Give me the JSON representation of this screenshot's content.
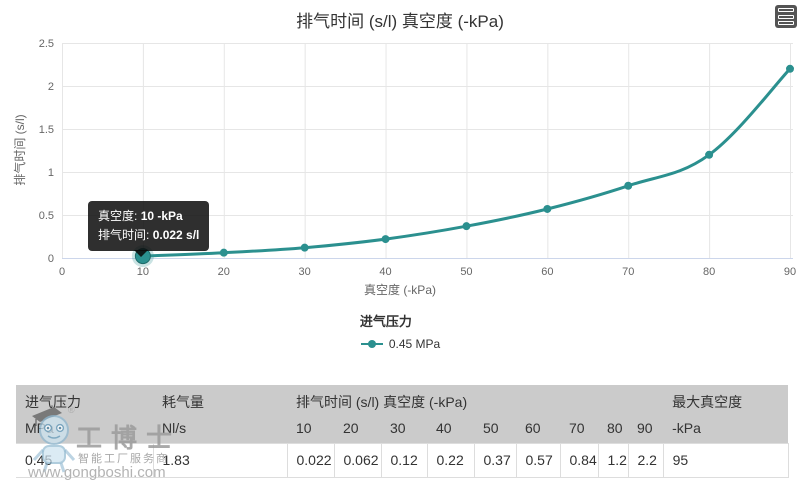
{
  "chart": {
    "title": "排气时间 (s/l) 真空度 (-kPa)",
    "icons": {
      "export_menu": "hamburger-icon"
    },
    "x_axis": {
      "title": "真空度 (-kPa)",
      "ticks": [
        "0",
        "10",
        "20",
        "30",
        "40",
        "50",
        "60",
        "70",
        "80",
        "90"
      ]
    },
    "y_axis": {
      "title": "排气时间 (s/l)",
      "ticks": [
        "0",
        "0.5",
        "1",
        "1.5",
        "2",
        "2.5"
      ]
    },
    "colors": {
      "series": "#2b908f",
      "grid": "#e6e6e6",
      "axis_line": "#ccd6eb",
      "tick_label": "#666666",
      "title": "#333333",
      "halo": "rgba(43,144,143,0.25)"
    },
    "tooltip": {
      "x_label": "真空度:",
      "x_value": "10 -kPa",
      "y_label": "排气时间:",
      "y_value": "0.022 s/l",
      "point_index": 0
    },
    "legend": {
      "title": "进气压力",
      "items": [
        {
          "label": "0.45 MPa",
          "color": "#2b908f"
        }
      ]
    }
  },
  "chart_data": {
    "type": "line",
    "x": [
      10,
      20,
      30,
      40,
      50,
      60,
      70,
      80,
      90
    ],
    "series": [
      {
        "name": "0.45 MPa",
        "values": [
          0.022,
          0.062,
          0.12,
          0.22,
          0.37,
          0.57,
          0.84,
          1.2,
          2.2
        ]
      }
    ],
    "title": "排气时间 (s/l) 真空度 (-kPa)",
    "xlabel": "真空度 (-kPa)",
    "ylabel": "排气时间 (s/l)",
    "xlim": [
      0,
      90
    ],
    "ylim": [
      0,
      2.5
    ],
    "x_tick_step": 10,
    "y_tick_step": 0.5,
    "grid": true,
    "legend_position": "bottom"
  },
  "table": {
    "header_row1": [
      {
        "label": "进气压力",
        "colspan": 1
      },
      {
        "label": "耗气量",
        "colspan": 1
      },
      {
        "label": "排气时间 (s/l) 真空度 (-kPa)",
        "colspan": 9
      },
      {
        "label": "最大真空度",
        "colspan": 1
      }
    ],
    "header_row2": [
      "MPa",
      "Nl/s",
      "10",
      "20",
      "30",
      "40",
      "50",
      "60",
      "70",
      "80",
      "90",
      "-kPa"
    ],
    "rows": [
      [
        "0.45",
        "1.83",
        "0.022",
        "0.062",
        "0.12",
        "0.22",
        "0.37",
        "0.57",
        "0.84",
        "1.2",
        "2.2",
        "95"
      ]
    ]
  },
  "watermark": {
    "brand": "工博士",
    "registered_mark": "®",
    "tagline": "智能工厂服务商",
    "url": "www.gongboshi.com"
  }
}
